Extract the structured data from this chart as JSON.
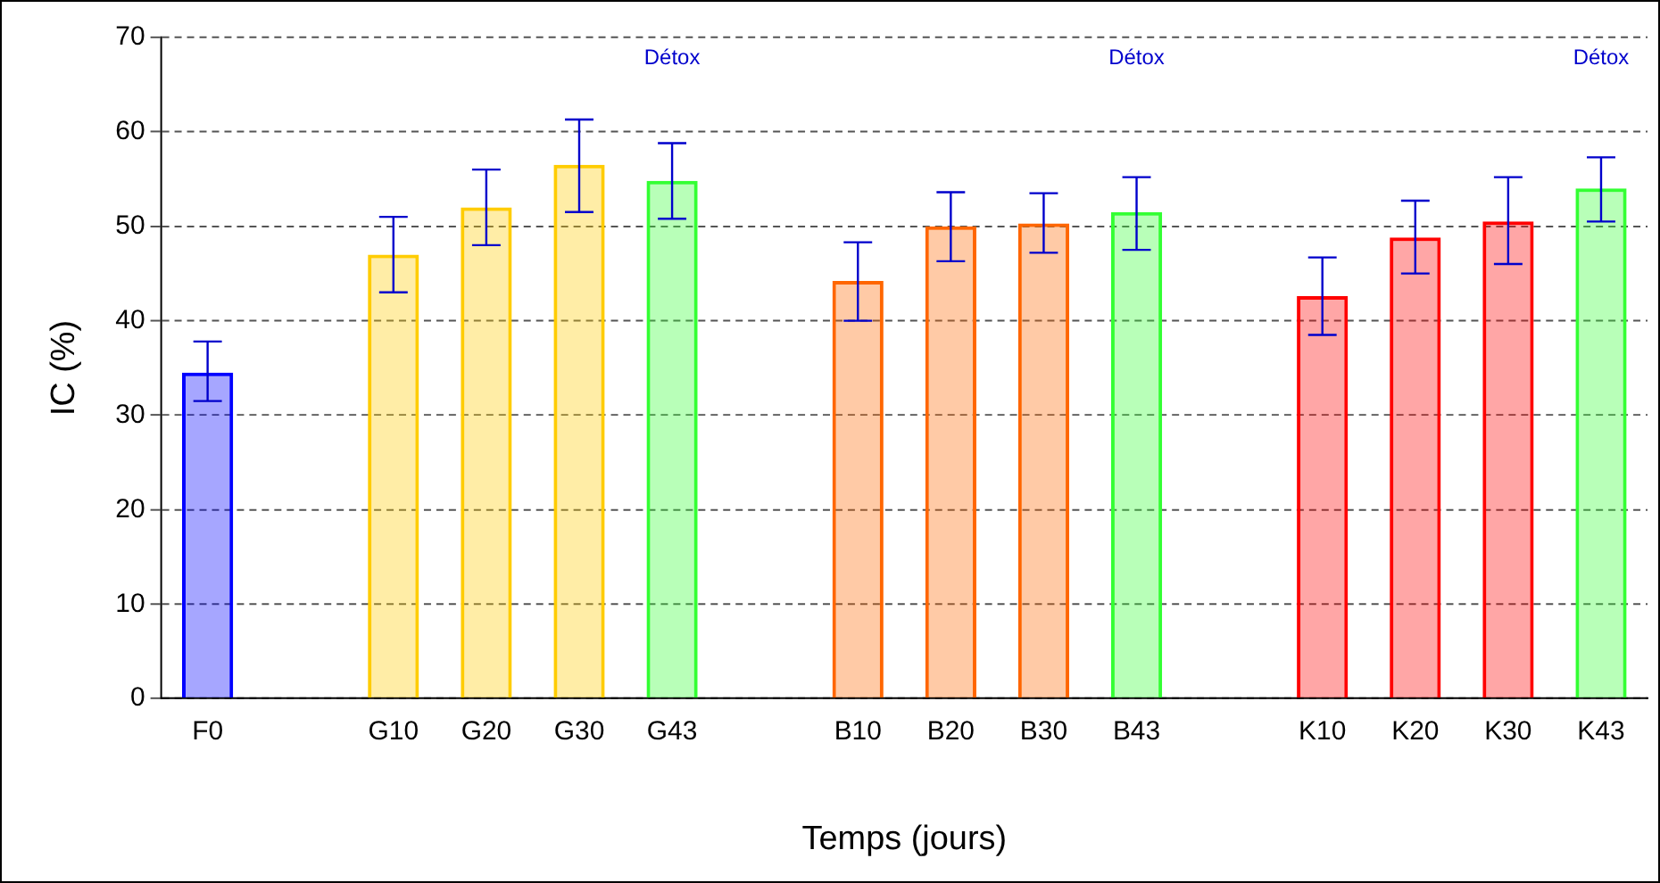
{
  "chart_data": {
    "type": "bar",
    "xlabel": "Temps (jours)",
    "ylabel": "IC (%)",
    "categories": [
      "F0",
      null,
      "G10",
      "G20",
      "G30",
      "G43",
      null,
      "B10",
      "B20",
      "B30",
      "B43",
      null,
      "K10",
      "K20",
      "K30",
      "K43"
    ],
    "values": [
      34.5,
      null,
      47,
      52,
      56.5,
      54.8,
      null,
      44.2,
      50,
      50.3,
      51.5,
      null,
      42.6,
      48.8,
      50.5,
      54
    ],
    "errors": [
      [
        31.5,
        37.8
      ],
      null,
      [
        43,
        51
      ],
      [
        48,
        56
      ],
      [
        51.5,
        61.3
      ],
      [
        50.8,
        58.8
      ],
      null,
      [
        40,
        48.3
      ],
      [
        46.3,
        53.6
      ],
      [
        47.2,
        53.5
      ],
      [
        47.5,
        55.2
      ],
      null,
      [
        38.5,
        46.7
      ],
      [
        45,
        52.7
      ],
      [
        46,
        55.2
      ],
      [
        50.5,
        57.3
      ]
    ],
    "colors": [
      "#0000ff",
      "#000000",
      "#ffcc00",
      "#ffcc00",
      "#ffcc00",
      "#33ff33",
      "#000000",
      "#ff6600",
      "#ff6600",
      "#ff6600",
      "#33ff33",
      "#000000",
      "#ff0000",
      "#ff0000",
      "#ff0000",
      "#33ff33"
    ],
    "ylim": [
      0,
      70
    ],
    "yticks": [
      0,
      10,
      20,
      30,
      40,
      50,
      60,
      70
    ],
    "grid": "y",
    "legend": false,
    "annotations": [
      "Détox",
      "Détox",
      "Détox"
    ]
  }
}
